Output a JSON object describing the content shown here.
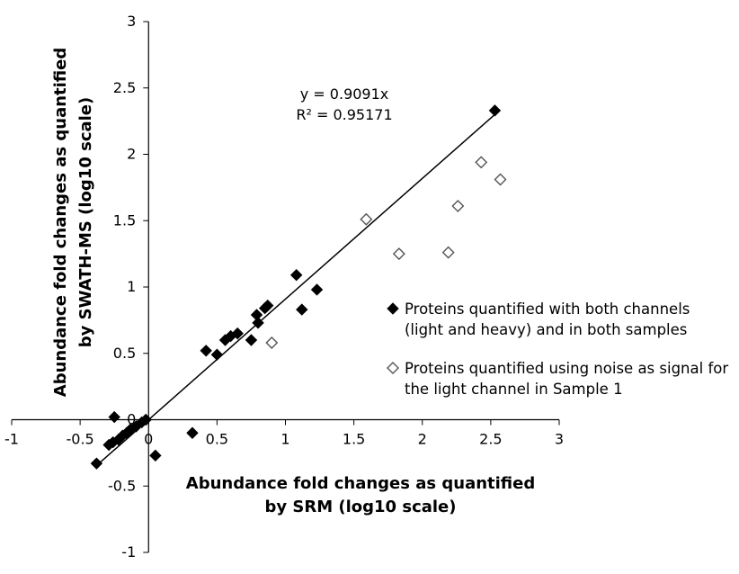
{
  "chart_data": {
    "type": "scatter",
    "xlabel": [
      "Abundance fold changes as quantified",
      "by SRM (log10 scale)"
    ],
    "ylabel": [
      "Abundance fold changes as quantified",
      "by SWATH-MS (log10 scale)"
    ],
    "xlim": [
      -1,
      3
    ],
    "ylim": [
      -1,
      3
    ],
    "x_ticks": [
      -1,
      -0.5,
      0,
      0.5,
      1,
      1.5,
      2,
      2.5,
      3
    ],
    "y_ticks": [
      -1,
      -0.5,
      0,
      0.5,
      1,
      1.5,
      2,
      2.5,
      3
    ],
    "x_tick_labels": [
      "-1",
      "-0.5",
      "0",
      "0.5",
      "1",
      "1.5",
      "2",
      "2.5",
      "3"
    ],
    "y_tick_labels": [
      "-1",
      "-0.5",
      "0",
      "0.5",
      "1",
      "1.5",
      "2",
      "2.5",
      "3"
    ],
    "grid": false,
    "trendline": {
      "slope": 0.9091,
      "intercept": 0,
      "x_range": [
        -0.35,
        2.55
      ],
      "equation": "y = 0.9091x",
      "r_squared": "R² = 0.95171"
    },
    "series": [
      {
        "name": "Proteins quantified with both channels (light and heavy) and in both samples",
        "legend_lines": [
          "Proteins quantified with both channels",
          "(light and heavy) and in both samples"
        ],
        "marker": "filled-diamond",
        "points": [
          [
            2.53,
            2.33
          ],
          [
            1.08,
            1.09
          ],
          [
            1.23,
            0.98
          ],
          [
            1.12,
            0.83
          ],
          [
            0.87,
            0.86
          ],
          [
            0.85,
            0.84
          ],
          [
            0.79,
            0.79
          ],
          [
            0.8,
            0.73
          ],
          [
            0.75,
            0.6
          ],
          [
            0.65,
            0.65
          ],
          [
            0.6,
            0.63
          ],
          [
            0.56,
            0.6
          ],
          [
            0.5,
            0.49
          ],
          [
            0.42,
            0.52
          ],
          [
            0.32,
            -0.1
          ],
          [
            0.05,
            -0.27
          ],
          [
            -0.02,
            0.0
          ],
          [
            -0.05,
            -0.02
          ],
          [
            -0.09,
            -0.05
          ],
          [
            -0.13,
            -0.07
          ],
          [
            -0.16,
            -0.1
          ],
          [
            -0.19,
            -0.12
          ],
          [
            -0.22,
            -0.15
          ],
          [
            -0.26,
            -0.17
          ],
          [
            -0.29,
            -0.19
          ],
          [
            -0.25,
            0.02
          ],
          [
            -0.38,
            -0.33
          ]
        ]
      },
      {
        "name": "Proteins quantified using noise as signal for the light channel in Sample 1",
        "legend_lines": [
          "Proteins quantified using noise as signal for",
          "the light channel in Sample 1"
        ],
        "marker": "open-diamond",
        "points": [
          [
            2.43,
            1.94
          ],
          [
            2.57,
            1.81
          ],
          [
            2.26,
            1.61
          ],
          [
            1.59,
            1.51
          ],
          [
            1.83,
            1.25
          ],
          [
            2.19,
            1.26
          ],
          [
            0.9,
            0.58
          ]
        ]
      }
    ]
  }
}
